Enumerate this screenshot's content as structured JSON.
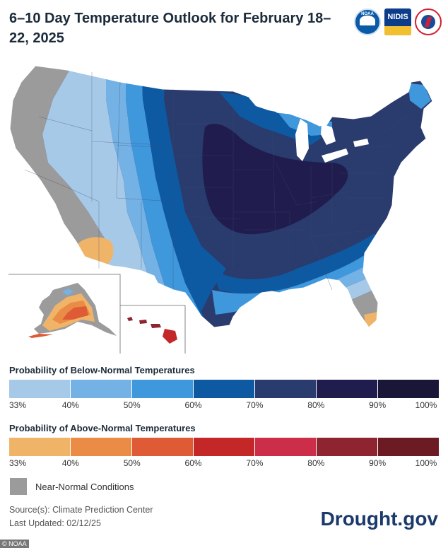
{
  "title": "6–10 Day Temperature Outlook for February 18–22, 2025",
  "logos": [
    {
      "name": "noaa-logo",
      "text": "NOAA"
    },
    {
      "name": "nidis-logo",
      "text": "NIDIS"
    },
    {
      "name": "nws-logo",
      "text": ""
    }
  ],
  "map": {
    "inset_labels": []
  },
  "legend_below": {
    "title": "Probability of Below-Normal Temperatures",
    "colors": [
      "#a7c9e8",
      "#74b1e4",
      "#3f97dc",
      "#0d5aa3",
      "#2a3b6e",
      "#201c4e",
      "#1a1638"
    ],
    "ticks": [
      "33%",
      "40%",
      "50%",
      "60%",
      "70%",
      "80%",
      "90%",
      "100%"
    ]
  },
  "legend_above": {
    "title": "Probability of Above-Normal Temperatures",
    "colors": [
      "#efb468",
      "#ea8c46",
      "#de5b35",
      "#c42727",
      "#cc2e4a",
      "#8e2430",
      "#6c1a24"
    ],
    "ticks": [
      "33%",
      "40%",
      "50%",
      "60%",
      "70%",
      "80%",
      "90%",
      "100%"
    ]
  },
  "near_normal": {
    "label": "Near-Normal Conditions",
    "color": "#9b9b9b"
  },
  "source": {
    "line1": "Source(s): Climate Prediction Center",
    "line2": "Last Updated: 02/12/25"
  },
  "brand": "Drought.gov",
  "credit": "© NOAA"
}
